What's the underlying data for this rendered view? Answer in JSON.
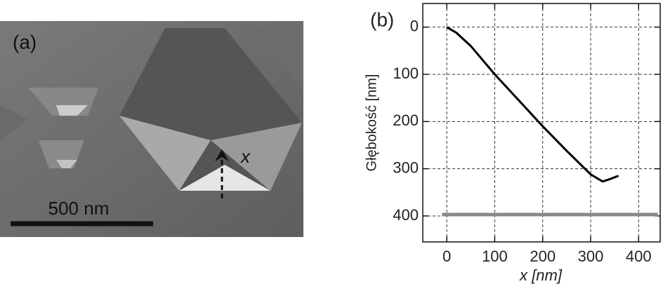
{
  "image_panel": {
    "label": "(a)",
    "scale_bar": "500 nm",
    "arrow_label": "x"
  },
  "chart_data": {
    "type": "line",
    "panel_label": "(b)",
    "x_label": "x [nm]",
    "y_label": "Głębokość [nm]",
    "xlim": [
      -50,
      445
    ],
    "xticks": [
      0,
      100,
      200,
      300,
      400
    ],
    "ylim": [
      -50,
      455
    ],
    "yticks": [
      0,
      100,
      200,
      300,
      400
    ],
    "y_inverted": true,
    "grid": true,
    "series": [
      {
        "color": "#000000",
        "x": [
          0,
          20,
          50,
          100,
          150,
          200,
          250,
          300,
          325,
          340,
          358
        ],
        "values": [
          0,
          12,
          40,
          100,
          155,
          210,
          262,
          312,
          327,
          322,
          315
        ]
      },
      {
        "color": "#888888",
        "x": [
          -10,
          440
        ],
        "values": [
          397,
          397
        ]
      }
    ]
  }
}
